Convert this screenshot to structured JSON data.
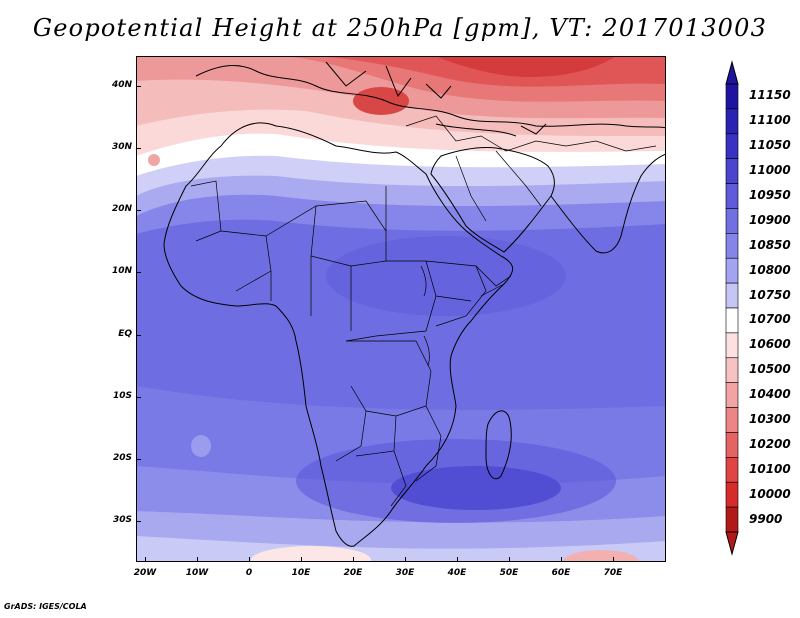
{
  "title": "Geopotential Height at 250hPa [gpm], VT: 2017013003",
  "footer": "GrADS: IGES/COLA",
  "y_axis_labels": [
    "40N",
    "30N",
    "20N",
    "10N",
    "EQ",
    "10S",
    "20S",
    "30S"
  ],
  "x_axis_labels": [
    "20W",
    "10W",
    "0",
    "10E",
    "20E",
    "30E",
    "40E",
    "50E",
    "60E",
    "70E"
  ],
  "colorbar": {
    "labels_top_to_bottom": [
      "11150",
      "11100",
      "11050",
      "11000",
      "10950",
      "10900",
      "10850",
      "10800",
      "10750",
      "10700",
      "10600",
      "10500",
      "10400",
      "10300",
      "10200",
      "10100",
      "10000",
      "9900"
    ],
    "colors_top_to_bottom": [
      "#1f14a0",
      "#2a22b0",
      "#3831c2",
      "#4a44cf",
      "#5f5bdb",
      "#7070e2",
      "#8585e9",
      "#a3a3f0",
      "#c6c6f6",
      "#ffffff",
      "#fde0e0",
      "#f7c2c2",
      "#f2a4a4",
      "#ec8585",
      "#e66363",
      "#df4545",
      "#d62b2b",
      "#b21a1a"
    ]
  },
  "map": {
    "region": "Africa, Arabian Peninsula, Europe-Mediterranean",
    "lon_range": [
      -22,
      80
    ],
    "lat_range": [
      -37,
      45
    ],
    "field": "Geopotential Height at 250hPa"
  }
}
